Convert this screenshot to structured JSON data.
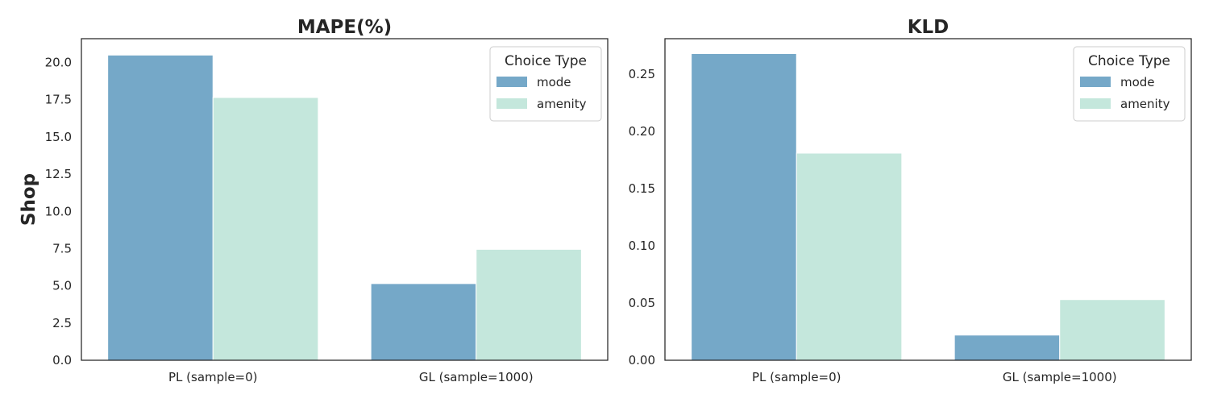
{
  "figure": {
    "row_label": "Shop"
  },
  "chart_data": [
    {
      "type": "bar",
      "title": "MAPE(%)",
      "xlabel": "",
      "ylabel": "Shop",
      "categories": [
        "PL (sample=0)",
        "GL (sample=1000)"
      ],
      "series": [
        {
          "name": "mode",
          "values": [
            20.5,
            5.15
          ],
          "color": "#75a8c8"
        },
        {
          "name": "amenity",
          "values": [
            17.65,
            7.45
          ],
          "color": "#c4e7dc"
        }
      ],
      "ylim": [
        0,
        21.6
      ],
      "yticks": [
        0.0,
        2.5,
        5.0,
        7.5,
        10.0,
        12.5,
        15.0,
        17.5,
        20.0
      ],
      "ytick_labels": [
        "0.0",
        "2.5",
        "5.0",
        "7.5",
        "10.0",
        "12.5",
        "15.0",
        "17.5",
        "20.0"
      ],
      "legend": {
        "title": "Choice Type",
        "placement": "top-right"
      },
      "grid": false
    },
    {
      "type": "bar",
      "title": "KLD",
      "xlabel": "",
      "ylabel": "",
      "categories": [
        "PL (sample=0)",
        "GL (sample=1000)"
      ],
      "series": [
        {
          "name": "mode",
          "values": [
            0.268,
            0.022
          ],
          "color": "#75a8c8"
        },
        {
          "name": "amenity",
          "values": [
            0.181,
            0.053
          ],
          "color": "#c4e7dc"
        }
      ],
      "ylim": [
        0,
        0.281
      ],
      "yticks": [
        0.0,
        0.05,
        0.1,
        0.15,
        0.2,
        0.25
      ],
      "ytick_labels": [
        "0.00",
        "0.05",
        "0.10",
        "0.15",
        "0.20",
        "0.25"
      ],
      "legend": {
        "title": "Choice Type",
        "placement": "top-right"
      },
      "grid": false
    }
  ]
}
